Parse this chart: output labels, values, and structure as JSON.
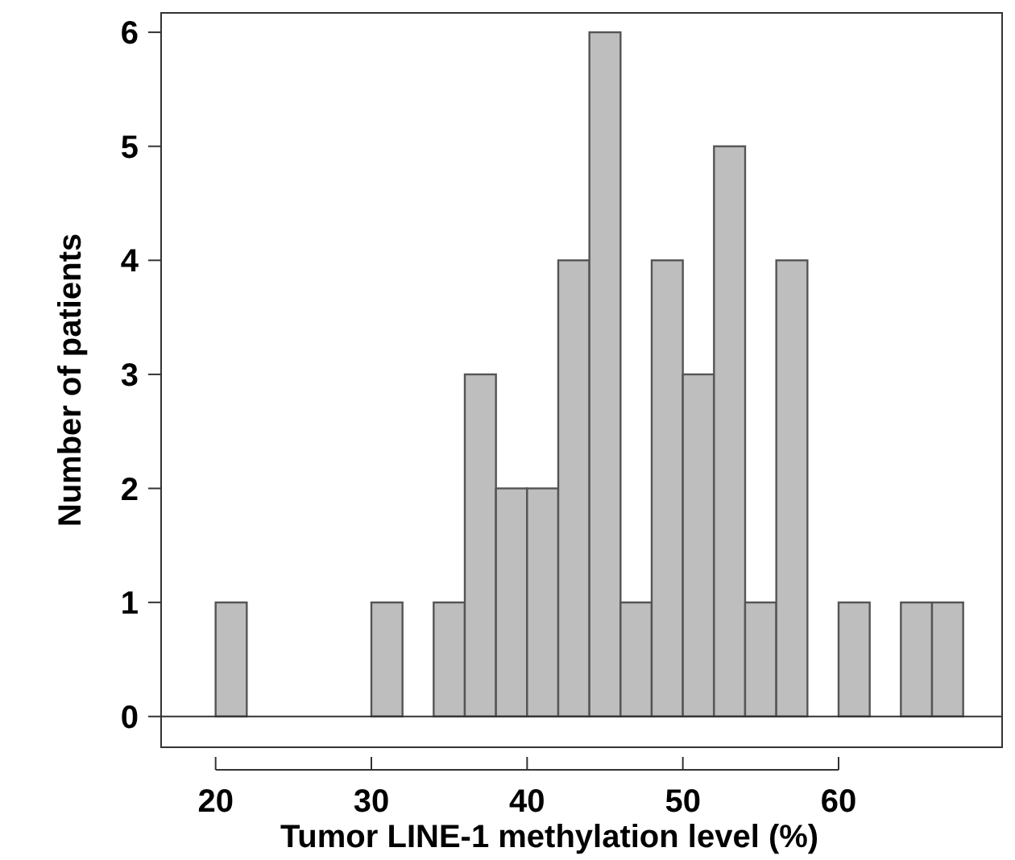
{
  "chart_data": {
    "type": "histogram",
    "xlabel": "Tumor LINE-1 methylation level (%)",
    "ylabel": "Number of patients",
    "bins": [
      20,
      22,
      24,
      26,
      28,
      30,
      32,
      34,
      36,
      38,
      40,
      42,
      44,
      46,
      48,
      50,
      52,
      54,
      56,
      58,
      60,
      62,
      64,
      66,
      68
    ],
    "values": [
      1,
      0,
      0,
      0,
      0,
      1,
      0,
      1,
      3,
      2,
      2,
      4,
      6,
      1,
      4,
      3,
      5,
      1,
      4,
      0,
      1,
      0,
      1,
      1
    ],
    "color": "#bebebe",
    "xlim": [
      16.5,
      70.5
    ],
    "ylim": [
      -0.27,
      6.17
    ],
    "xticks": [
      20,
      30,
      40,
      50,
      60
    ],
    "yticks": [
      0,
      1,
      2,
      3,
      4,
      5,
      6
    ],
    "ref_lines": [
      {
        "axis": "y",
        "value": 0
      }
    ],
    "grid": false
  }
}
